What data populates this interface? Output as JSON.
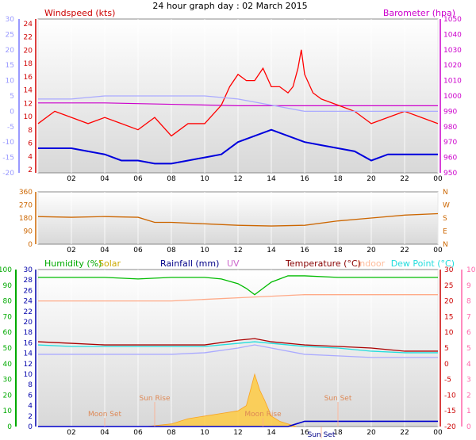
{
  "page_title": "24 hour graph day : 02 March 2015",
  "chart_data": [
    {
      "type": "line",
      "id": "wind-baro",
      "labels": {
        "windspeed": "Windspeed (kts)",
        "barometer": "Barometer (hpa)"
      },
      "left_axis_outer": {
        "ticks": [
          "30",
          "25",
          "20",
          "15",
          "10",
          "5",
          "0",
          "-5",
          "-10",
          "-15",
          "-20"
        ],
        "color": "#9a9aff"
      },
      "left_axis_inner": {
        "ticks": [
          "24",
          "22",
          "20",
          "18",
          "16",
          "14",
          "12",
          "10",
          "8",
          "6",
          "4",
          "2"
        ],
        "color": "#d00000"
      },
      "right_axis": {
        "ticks": [
          "1050",
          "1040",
          "1030",
          "1020",
          "1010",
          "1000",
          "990",
          "980",
          "970",
          "960",
          "950"
        ],
        "color": "#cc00cc"
      },
      "x_ticks": [
        "02",
        "04",
        "06",
        "08",
        "10",
        "12",
        "14",
        "16",
        "18",
        "20",
        "22",
        "00"
      ],
      "series": [
        {
          "key": "gust",
          "color": "#ff0000",
          "x": [
            0,
            1,
            2,
            3,
            4,
            5,
            6,
            7,
            8,
            9,
            10,
            11,
            11.5,
            12,
            12.5,
            13,
            13.5,
            14,
            14.5,
            15,
            15.3,
            15.6,
            15.8,
            16,
            16.5,
            17,
            18,
            19,
            20,
            21,
            22,
            23,
            24
          ],
          "y": [
            8,
            10,
            9,
            8,
            9,
            8,
            7,
            9,
            6,
            8,
            8,
            11,
            14,
            16,
            15,
            15,
            17,
            14,
            14,
            13,
            14,
            17,
            20,
            16,
            13,
            12,
            11,
            10,
            8,
            9,
            10,
            9,
            8
          ]
        },
        {
          "key": "wind_avg",
          "color": "#0000dd",
          "x": [
            0,
            1,
            2,
            3,
            4,
            5,
            6,
            7,
            8,
            9,
            10,
            11,
            12,
            13,
            14,
            15,
            16,
            17,
            18,
            19,
            20,
            21,
            22,
            23,
            24
          ],
          "y": [
            4,
            4,
            4,
            3.5,
            3,
            2,
            2,
            1.5,
            1.5,
            2,
            2.5,
            3,
            5,
            6,
            7,
            6,
            5,
            4.5,
            4,
            3.5,
            2,
            3,
            3,
            3,
            3
          ]
        },
        {
          "key": "direction_ref",
          "color": "#aaaaff",
          "x": [
            0,
            2,
            4,
            6,
            8,
            10,
            12,
            13,
            14,
            15,
            16,
            18,
            20,
            22,
            24
          ],
          "y": [
            2,
            2,
            2.5,
            2.5,
            2.5,
            2.5,
            2,
            1.5,
            1,
            0.5,
            0,
            0,
            0,
            0,
            0
          ]
        },
        {
          "key": "barometer",
          "color": "#cc00cc",
          "x": [
            0,
            4,
            8,
            12,
            16,
            20,
            24
          ],
          "y": [
            995,
            995,
            994,
            993,
            993,
            993,
            993
          ]
        }
      ]
    },
    {
      "type": "line",
      "id": "wind-direction",
      "y_ticks": [
        "360",
        "270",
        "180",
        "90",
        "0"
      ],
      "compass": [
        "N",
        "W",
        "S",
        "E",
        "N"
      ],
      "x_ticks": [
        "02",
        "04",
        "06",
        "08",
        "10",
        "12",
        "14",
        "16",
        "18",
        "20",
        "22",
        "00"
      ],
      "series": [
        {
          "key": "direction",
          "color": "#cc6600",
          "x": [
            0,
            2,
            4,
            6,
            7,
            8,
            10,
            12,
            14,
            16,
            18,
            20,
            22,
            24
          ],
          "y": [
            190,
            185,
            190,
            185,
            150,
            150,
            140,
            130,
            125,
            130,
            160,
            180,
            200,
            210
          ]
        }
      ]
    },
    {
      "type": "line",
      "id": "temp-humidity",
      "labels": {
        "humidity": "Humidity (%)",
        "solar": "Solar",
        "rainfall": "Rainfall (mm)",
        "uv": "UV",
        "temperature": "Temperature (°C)",
        "indoor": "Indoor",
        "dewpoint": "Dew Point (°C)"
      },
      "left_axis_outer": {
        "ticks": [
          "100",
          "90",
          "80",
          "70",
          "60",
          "50",
          "40",
          "30",
          "20",
          "10",
          "0"
        ],
        "color": "#00aa00"
      },
      "left_axis_inner": {
        "ticks": [
          "30",
          "28",
          "26",
          "24",
          "22",
          "20",
          "18",
          "16",
          "14",
          "12",
          "10",
          "8",
          "6",
          "4",
          "2",
          "0"
        ],
        "color": "#0000aa"
      },
      "right_axis_inner": {
        "ticks": [
          "30",
          "25",
          "20",
          "15",
          "10",
          "5",
          "0",
          "-5",
          "-10",
          "-15",
          "-20"
        ],
        "color": "#cc0000"
      },
      "right_axis_outer": {
        "ticks": [
          "10",
          "9",
          "8",
          "7",
          "6",
          "5",
          "4",
          "3",
          "2",
          "1",
          "0"
        ],
        "color": "#ff66aa"
      },
      "x_ticks": [
        "02",
        "04",
        "06",
        "08",
        "10",
        "12",
        "14",
        "16",
        "18",
        "20",
        "22",
        "00"
      ],
      "series": [
        {
          "key": "humidity",
          "color": "#00bb00",
          "x": [
            0,
            2,
            4,
            6,
            8,
            10,
            11,
            12,
            12.5,
            13,
            13.5,
            14,
            15,
            16,
            18,
            20,
            22,
            24
          ],
          "y": [
            95,
            95,
            95,
            94,
            95,
            95,
            94,
            91,
            88,
            84,
            88,
            92,
            96,
            96,
            95,
            95,
            95,
            95
          ]
        },
        {
          "key": "indoor",
          "color": "#ffaa88",
          "x": [
            0,
            4,
            8,
            12,
            16,
            20,
            24
          ],
          "y": [
            20,
            20,
            20,
            21,
            22,
            22,
            22
          ]
        },
        {
          "key": "temperature",
          "color": "#aa0000",
          "x": [
            0,
            2,
            4,
            6,
            8,
            10,
            12,
            13,
            14,
            16,
            18,
            20,
            22,
            24
          ],
          "y": [
            7,
            6.5,
            6,
            6,
            6,
            6,
            7.5,
            8,
            7,
            6,
            5.5,
            5,
            4,
            4
          ]
        },
        {
          "key": "dewpoint",
          "color": "#22dddd",
          "x": [
            0,
            2,
            4,
            6,
            8,
            10,
            12,
            13,
            14,
            16,
            18,
            20,
            22,
            24
          ],
          "y": [
            6,
            5.5,
            5.5,
            5.5,
            5.5,
            5.5,
            6.5,
            7,
            6.5,
            5.5,
            5,
            4,
            3.5,
            3.5
          ]
        },
        {
          "key": "wind_chill",
          "color": "#aaaaff",
          "x": [
            0,
            2,
            4,
            6,
            8,
            10,
            12,
            13,
            14,
            16,
            18,
            20,
            22,
            24
          ],
          "y": [
            3,
            3,
            3,
            3,
            3,
            3.5,
            5,
            6,
            5,
            3,
            2.5,
            2,
            2,
            2
          ]
        },
        {
          "key": "solar",
          "color": "#ffcc44",
          "x": [
            6.5,
            8,
            9,
            10,
            11,
            12,
            12.5,
            13,
            13.3,
            13.6,
            14,
            14.5,
            15,
            15.5
          ],
          "y": [
            0,
            0.5,
            1.5,
            2,
            2.5,
            3,
            4,
            10,
            7,
            5,
            2,
            1,
            0.5,
            0
          ]
        },
        {
          "key": "rainfall",
          "color": "#0000cc",
          "x": [
            0,
            15,
            15.5,
            16,
            24
          ],
          "y": [
            0,
            0,
            0.5,
            1,
            1
          ]
        }
      ],
      "annotations": [
        {
          "text": "Sun Rise",
          "x": 7,
          "level": "upper"
        },
        {
          "text": "Moon Set",
          "x": 4,
          "level": "lower"
        },
        {
          "text": "Moon Rise",
          "x": 13.5,
          "level": "lower"
        },
        {
          "text": "Sun Set",
          "x": 18,
          "level": "upper"
        },
        {
          "text": "Sun Set",
          "x": 17,
          "level": "bottom"
        }
      ]
    }
  ]
}
